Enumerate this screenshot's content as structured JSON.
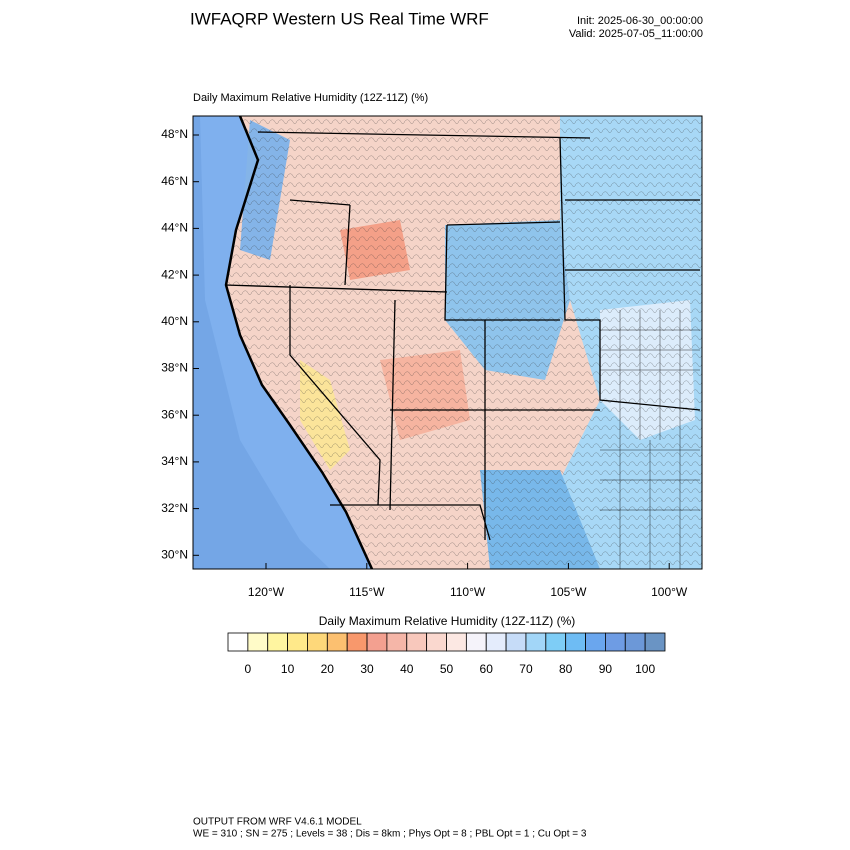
{
  "header": {
    "title": "IWFAQRP Western US Real Time WRF",
    "init": "Init: 2025-06-30_00:00:00",
    "valid": "Valid: 2025-07-05_11:00:00"
  },
  "map": {
    "subtitle": "Daily Maximum Relative Humidity (12Z-11Z)   (%)",
    "lat_labels": [
      "48°N",
      "46°N",
      "44°N",
      "42°N",
      "40°N",
      "38°N",
      "36°N",
      "34°N",
      "32°N",
      "30°N"
    ],
    "lon_labels": [
      "120°W",
      "115°W",
      "110°W",
      "105°W",
      "100°W"
    ]
  },
  "colorbar": {
    "title": "Daily Maximum Relative Humidity (12Z-11Z)  (%)",
    "colors": [
      "#ffffff",
      "#fffbc8",
      "#fff5a0",
      "#ffe98a",
      "#fed87a",
      "#fcc070",
      "#f8986c",
      "#f3a090",
      "#f5b6a8",
      "#f8c8bc",
      "#fad8cf",
      "#fce8e3",
      "#f5f3fa",
      "#e4ecfc",
      "#c6dcf8",
      "#a2d6f8",
      "#7ecdf6",
      "#6ebcf4",
      "#6aa6ee",
      "#6e9ce4",
      "#6c98d8",
      "#6a94c4"
    ],
    "labels": [
      0,
      10,
      20,
      30,
      40,
      50,
      60,
      70,
      80,
      90,
      100
    ]
  },
  "footer": {
    "line1": "OUTPUT FROM WRF V4.6.1 MODEL",
    "line2": "WE = 310 ; SN = 275 ; Levels = 38 ; Dis = 8km ; Phys Opt = 8 ; PBL Opt = 1 ; Cu Opt = 3"
  }
}
